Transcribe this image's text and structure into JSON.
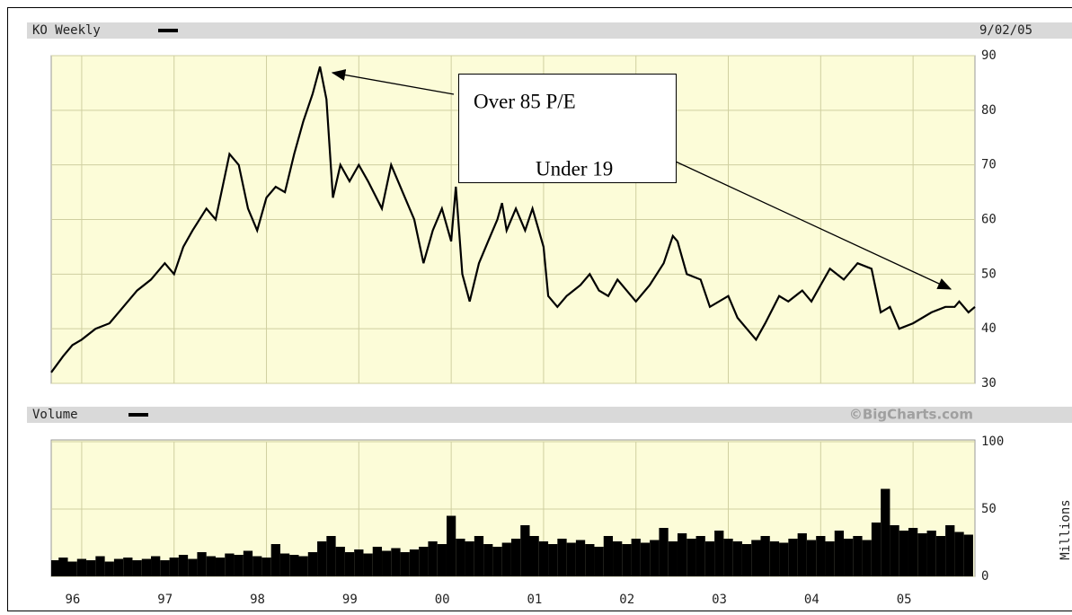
{
  "chart_data": [
    {
      "type": "line",
      "title": "KO Weekly",
      "date": "9/02/05",
      "color": "#000000",
      "grid": true,
      "annotations": [
        "Over 85 P/E",
        "Under 19"
      ],
      "xlim": [
        1995.67,
        2005.67
      ],
      "ylim": [
        30,
        90
      ],
      "yticks": [
        30,
        40,
        50,
        60,
        70,
        80,
        90
      ],
      "x": [
        1995.67,
        1995.8,
        1995.9,
        1996.0,
        1996.15,
        1996.3,
        1996.45,
        1996.6,
        1996.75,
        1996.9,
        1997.0,
        1997.1,
        1997.2,
        1997.35,
        1997.45,
        1997.55,
        1997.6,
        1997.7,
        1997.8,
        1997.9,
        1998.0,
        1998.1,
        1998.2,
        1998.3,
        1998.4,
        1998.5,
        1998.58,
        1998.65,
        1998.72,
        1998.8,
        1998.9,
        1999.0,
        1999.1,
        1999.25,
        1999.35,
        1999.5,
        1999.6,
        1999.7,
        1999.8,
        1999.9,
        2000.0,
        2000.05,
        2000.12,
        2000.2,
        2000.3,
        2000.4,
        2000.5,
        2000.55,
        2000.6,
        2000.7,
        2000.8,
        2000.88,
        2001.0,
        2001.05,
        2001.15,
        2001.25,
        2001.4,
        2001.5,
        2001.6,
        2001.7,
        2001.8,
        2001.9,
        2002.0,
        2002.15,
        2002.3,
        2002.4,
        2002.45,
        2002.55,
        2002.7,
        2002.8,
        2003.0,
        2003.1,
        2003.2,
        2003.3,
        2003.4,
        2003.55,
        2003.65,
        2003.8,
        2003.9,
        2004.0,
        2004.1,
        2004.25,
        2004.4,
        2004.55,
        2004.65,
        2004.75,
        2004.85,
        2005.0,
        2005.1,
        2005.2,
        2005.35,
        2005.45,
        2005.5,
        2005.6,
        2005.67
      ],
      "values": [
        32,
        35,
        37,
        38,
        40,
        41,
        44,
        47,
        49,
        52,
        50,
        55,
        58,
        62,
        60,
        68,
        72,
        70,
        62,
        58,
        64,
        66,
        65,
        72,
        78,
        83,
        88,
        82,
        64,
        70,
        67,
        70,
        67,
        62,
        70,
        64,
        60,
        52,
        58,
        62,
        56,
        66,
        50,
        45,
        52,
        56,
        60,
        63,
        58,
        62,
        58,
        62,
        55,
        46,
        44,
        46,
        48,
        50,
        47,
        46,
        49,
        47,
        45,
        48,
        52,
        57,
        56,
        50,
        49,
        44,
        46,
        42,
        40,
        38,
        41,
        46,
        45,
        47,
        45,
        48,
        51,
        49,
        52,
        51,
        43,
        44,
        40,
        41,
        42,
        43,
        44,
        44,
        45,
        43,
        44
      ]
    },
    {
      "type": "bar",
      "title": "Volume",
      "source": "©BigCharts.com",
      "ylabel": "Millions",
      "color": "#000000",
      "grid": true,
      "xlim": [
        1995.67,
        2005.67
      ],
      "ylim": [
        0,
        100
      ],
      "yticks": [
        0,
        50,
        100
      ],
      "xticks": [
        {
          "value": 1996,
          "label": "96"
        },
        {
          "value": 1997,
          "label": "97"
        },
        {
          "value": 1998,
          "label": "98"
        },
        {
          "value": 1999,
          "label": "99"
        },
        {
          "value": 2000,
          "label": "00"
        },
        {
          "value": 2001,
          "label": "01"
        },
        {
          "value": 2002,
          "label": "02"
        },
        {
          "value": 2003,
          "label": "03"
        },
        {
          "value": 2004,
          "label": "04"
        },
        {
          "value": 2005,
          "label": "05"
        }
      ],
      "x": [
        1995.7,
        1995.8,
        1995.9,
        1996.0,
        1996.1,
        1996.2,
        1996.3,
        1996.4,
        1996.5,
        1996.6,
        1996.7,
        1996.8,
        1996.9,
        1997.0,
        1997.1,
        1997.2,
        1997.3,
        1997.4,
        1997.5,
        1997.6,
        1997.7,
        1997.8,
        1997.9,
        1998.0,
        1998.1,
        1998.2,
        1998.3,
        1998.4,
        1998.5,
        1998.6,
        1998.7,
        1998.8,
        1998.9,
        1999.0,
        1999.1,
        1999.2,
        1999.3,
        1999.4,
        1999.5,
        1999.6,
        1999.7,
        1999.8,
        1999.9,
        2000.0,
        2000.1,
        2000.2,
        2000.3,
        2000.4,
        2000.5,
        2000.6,
        2000.7,
        2000.8,
        2000.9,
        2001.0,
        2001.1,
        2001.2,
        2001.3,
        2001.4,
        2001.5,
        2001.6,
        2001.7,
        2001.8,
        2001.9,
        2002.0,
        2002.1,
        2002.2,
        2002.3,
        2002.4,
        2002.5,
        2002.6,
        2002.7,
        2002.8,
        2002.9,
        2003.0,
        2003.1,
        2003.2,
        2003.3,
        2003.4,
        2003.5,
        2003.6,
        2003.7,
        2003.8,
        2003.9,
        2004.0,
        2004.1,
        2004.2,
        2004.3,
        2004.4,
        2004.5,
        2004.6,
        2004.7,
        2004.8,
        2004.9,
        2005.0,
        2005.1,
        2005.2,
        2005.3,
        2005.4,
        2005.5,
        2005.6
      ],
      "values": [
        12,
        14,
        11,
        13,
        12,
        15,
        11,
        13,
        14,
        12,
        13,
        15,
        12,
        14,
        16,
        13,
        18,
        15,
        14,
        17,
        16,
        19,
        15,
        14,
        24,
        17,
        16,
        15,
        18,
        26,
        30,
        22,
        18,
        20,
        17,
        22,
        19,
        21,
        18,
        20,
        22,
        26,
        24,
        45,
        28,
        26,
        30,
        24,
        22,
        25,
        28,
        38,
        30,
        26,
        24,
        28,
        25,
        27,
        24,
        22,
        30,
        26,
        24,
        28,
        25,
        27,
        36,
        26,
        32,
        28,
        30,
        26,
        34,
        28,
        26,
        24,
        27,
        30,
        26,
        25,
        28,
        32,
        27,
        30,
        26,
        34,
        28,
        30,
        27,
        40,
        65,
        38,
        34,
        36,
        32,
        34,
        30,
        38,
        33,
        31
      ]
    }
  ]
}
